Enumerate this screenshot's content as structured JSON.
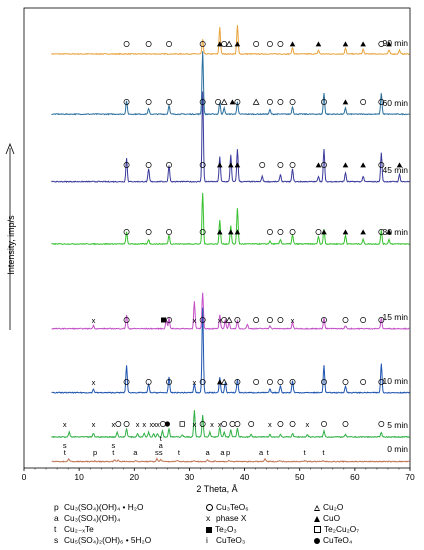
{
  "chart_data": {
    "type": "line",
    "xlabel": "2 Theta, Å",
    "ylabel": "Intensity, imp/s",
    "xlim": [
      0,
      70
    ],
    "xticks": [
      0,
      10,
      20,
      30,
      40,
      50,
      60,
      70
    ],
    "grid": false,
    "series": [
      {
        "name": "90 min",
        "color": "#e8a33b",
        "baseline": 0.68,
        "peaks": [
          [
            32.4,
            0.45
          ],
          [
            35.5,
            0.85
          ],
          [
            38.7,
            0.9
          ],
          [
            48.7,
            0.2
          ],
          [
            53.4,
            0.12
          ],
          [
            58.3,
            0.18
          ],
          [
            61.5,
            0.15
          ],
          [
            66.2,
            0.12
          ],
          [
            68.1,
            0.12
          ]
        ]
      },
      {
        "name": "60 min",
        "color": "#2a6f9e",
        "baseline": 0.62,
        "peaks": [
          [
            18.6,
            0.45
          ],
          [
            22.6,
            0.18
          ],
          [
            26.3,
            0.3
          ],
          [
            32.4,
            2.1
          ],
          [
            35.5,
            0.4
          ],
          [
            36.3,
            0.2
          ],
          [
            38.7,
            0.4
          ],
          [
            44.6,
            0.15
          ],
          [
            48.7,
            0.25
          ],
          [
            54.4,
            0.7
          ],
          [
            58.3,
            0.2
          ],
          [
            64.8,
            0.7
          ]
        ]
      },
      {
        "name": "45 min",
        "color": "#3a3a9c",
        "baseline": 0.45,
        "peaks": [
          [
            18.6,
            0.65
          ],
          [
            22.6,
            0.35
          ],
          [
            26.3,
            0.45
          ],
          [
            32.4,
            2.5
          ],
          [
            35.5,
            0.7
          ],
          [
            37.5,
            0.75
          ],
          [
            38.7,
            0.9
          ],
          [
            43.2,
            0.15
          ],
          [
            46.5,
            0.2
          ],
          [
            48.7,
            0.35
          ],
          [
            53.4,
            0.15
          ],
          [
            54.4,
            0.9
          ],
          [
            58.3,
            0.25
          ],
          [
            61.5,
            0.15
          ],
          [
            64.8,
            0.8
          ],
          [
            68.1,
            0.2
          ]
        ]
      },
      {
        "name": "30 min",
        "color": "#35c12e",
        "baseline": 0.35,
        "peaks": [
          [
            18.6,
            0.4
          ],
          [
            22.6,
            0.15
          ],
          [
            26.3,
            0.3
          ],
          [
            32.4,
            1.7
          ],
          [
            35.5,
            0.8
          ],
          [
            37.5,
            0.6
          ],
          [
            38.7,
            1.2
          ],
          [
            44.6,
            0.1
          ],
          [
            46.5,
            0.15
          ],
          [
            48.7,
            0.3
          ],
          [
            53.4,
            0.25
          ],
          [
            54.4,
            0.5
          ],
          [
            58.3,
            0.3
          ],
          [
            61.5,
            0.15
          ],
          [
            64.8,
            0.45
          ],
          [
            66.2,
            0.15
          ]
        ]
      },
      {
        "name": "15 min",
        "color": "#c450c8",
        "baseline": 0.45,
        "peaks": [
          [
            12.6,
            0.1
          ],
          [
            18.6,
            0.45
          ],
          [
            25.8,
            0.3
          ],
          [
            26.3,
            0.35
          ],
          [
            30.9,
            0.9
          ],
          [
            32.4,
            1.2
          ],
          [
            35.5,
            0.45
          ],
          [
            36.5,
            0.3
          ],
          [
            37.2,
            0.2
          ],
          [
            38.7,
            0.25
          ],
          [
            40.5,
            0.15
          ],
          [
            44.6,
            0.1
          ],
          [
            48.7,
            0.2
          ],
          [
            54.4,
            0.35
          ],
          [
            58.3,
            0.1
          ],
          [
            64.8,
            0.35
          ]
        ]
      },
      {
        "name": "10 min",
        "color": "#1f55b0",
        "baseline": 0.45,
        "peaks": [
          [
            12.6,
            0.1
          ],
          [
            18.6,
            0.8
          ],
          [
            22.6,
            0.25
          ],
          [
            26.3,
            0.45
          ],
          [
            30.9,
            0.25
          ],
          [
            32.4,
            2.5
          ],
          [
            35.5,
            0.45
          ],
          [
            36.5,
            0.3
          ],
          [
            38.7,
            0.4
          ],
          [
            44.6,
            0.1
          ],
          [
            46.5,
            0.2
          ],
          [
            48.7,
            0.35
          ],
          [
            54.4,
            0.8
          ],
          [
            58.3,
            0.2
          ],
          [
            64.8,
            0.85
          ]
        ]
      },
      {
        "name": "5 min",
        "color": "#2faf44",
        "baseline": 0.35,
        "peaks": [
          [
            8.2,
            0.2
          ],
          [
            12.6,
            0.15
          ],
          [
            16.9,
            0.2
          ],
          [
            18.6,
            0.35
          ],
          [
            20.6,
            0.15
          ],
          [
            21.8,
            0.15
          ],
          [
            22.6,
            0.2
          ],
          [
            23.5,
            0.15
          ],
          [
            24.2,
            0.15
          ],
          [
            25.1,
            0.25
          ],
          [
            26.3,
            0.35
          ],
          [
            28.7,
            0.1
          ],
          [
            30.9,
            1.1
          ],
          [
            32.4,
            0.9
          ],
          [
            33.7,
            0.2
          ],
          [
            35.5,
            0.4
          ],
          [
            36.3,
            0.2
          ],
          [
            37.5,
            0.3
          ],
          [
            38.7,
            0.35
          ],
          [
            41.2,
            0.1
          ],
          [
            44.6,
            0.1
          ],
          [
            46.5,
            0.1
          ],
          [
            48.7,
            0.15
          ],
          [
            51.4,
            0.1
          ],
          [
            54.4,
            0.25
          ],
          [
            58.3,
            0.1
          ],
          [
            64.8,
            0.2
          ]
        ]
      },
      {
        "name": "0 min",
        "color": "#c07454",
        "baseline": 0.15,
        "peaks": [
          [
            8.1,
            0.2
          ],
          [
            12.9,
            0.05
          ],
          [
            16.4,
            0.15
          ],
          [
            17.1,
            0.1
          ],
          [
            20.2,
            0.08
          ],
          [
            24.1,
            0.2
          ],
          [
            24.8,
            0.15
          ],
          [
            27.8,
            0.1
          ],
          [
            30.9,
            0.08
          ],
          [
            33.3,
            0.1
          ],
          [
            34.7,
            0.07
          ],
          [
            37.2,
            0.08
          ],
          [
            43.7,
            0.2
          ],
          [
            46.3,
            0.08
          ],
          [
            50.9,
            0.07
          ],
          [
            54.3,
            0.05
          ]
        ]
      }
    ],
    "markers": [
      {
        "series": "90 min",
        "items": [
          [
            "o",
            18.6
          ],
          [
            "o",
            22.6
          ],
          [
            "o",
            26.3
          ],
          [
            "o",
            32.4
          ],
          [
            "▲",
            35.5
          ],
          [
            "o",
            36.3
          ],
          [
            "△",
            37.2
          ],
          [
            "▲",
            38.7
          ],
          [
            "o",
            42.1
          ],
          [
            "o",
            44.6
          ],
          [
            "o",
            46.5
          ],
          [
            "▲",
            48.7
          ],
          [
            "▲",
            53.4
          ],
          [
            "▲",
            58.3
          ],
          [
            "▲",
            61.5
          ],
          [
            "o",
            64.8
          ],
          [
            "▲",
            66.2
          ]
        ]
      },
      {
        "series": "60 min",
        "items": [
          [
            "o",
            18.6
          ],
          [
            "o",
            22.6
          ],
          [
            "o",
            26.3
          ],
          [
            "o",
            32.4
          ],
          [
            "o",
            35.2
          ],
          [
            "△",
            36.3
          ],
          [
            "▲",
            37.8
          ],
          [
            "o",
            38.7
          ],
          [
            "△",
            42.1
          ],
          [
            "o",
            44.6
          ],
          [
            "o",
            46.5
          ],
          [
            "o",
            48.7
          ],
          [
            "o",
            54.4
          ],
          [
            "▲",
            58.3
          ],
          [
            "o",
            61.5
          ],
          [
            "o",
            64.8
          ]
        ]
      },
      {
        "series": "45 min",
        "items": [
          [
            "o",
            18.6
          ],
          [
            "o",
            22.6
          ],
          [
            "o",
            26.3
          ],
          [
            "o",
            32.4
          ],
          [
            "▲",
            35.5
          ],
          [
            "▲",
            37.5
          ],
          [
            "▲",
            38.7
          ],
          [
            "o",
            43.2
          ],
          [
            "o",
            46.5
          ],
          [
            "o",
            48.7
          ],
          [
            "▲",
            53.4
          ],
          [
            "o",
            54.4
          ],
          [
            "▲",
            58.3
          ],
          [
            "▲",
            61.5
          ],
          [
            "o",
            64.8
          ],
          [
            "▲",
            68.1
          ]
        ]
      },
      {
        "series": "30 min",
        "items": [
          [
            "o",
            18.6
          ],
          [
            "o",
            22.6
          ],
          [
            "o",
            26.3
          ],
          [
            "o",
            32.4
          ],
          [
            "▲",
            35.5
          ],
          [
            "▲",
            37.5
          ],
          [
            "▲",
            38.7
          ],
          [
            "o",
            44.6
          ],
          [
            "o",
            46.5
          ],
          [
            "o",
            48.7
          ],
          [
            "o",
            53.4
          ],
          [
            "▲",
            54.4
          ],
          [
            "▲",
            58.3
          ],
          [
            "▲",
            61.5
          ],
          [
            "o",
            64.8
          ],
          [
            "▲",
            66.2
          ]
        ]
      },
      {
        "series": "15 min",
        "items": [
          [
            "x",
            12.6
          ],
          [
            "o",
            18.6
          ],
          [
            "■",
            25.3
          ],
          [
            "o",
            26.3
          ],
          [
            "x",
            30.9
          ],
          [
            "o",
            32.4
          ],
          [
            "x",
            35.5
          ],
          [
            "o",
            36.3
          ],
          [
            "△",
            37.2
          ],
          [
            "o",
            38.7
          ],
          [
            "o",
            42.1
          ],
          [
            "o",
            44.6
          ],
          [
            "o",
            46.5
          ],
          [
            "x",
            48.7
          ],
          [
            "o",
            54.4
          ],
          [
            "o",
            58.3
          ],
          [
            "o",
            61.5
          ],
          [
            "o",
            64.8
          ]
        ]
      },
      {
        "series": "10 min",
        "items": [
          [
            "x",
            12.6
          ],
          [
            "o",
            18.6
          ],
          [
            "o",
            22.6
          ],
          [
            "o",
            26.3
          ],
          [
            "x",
            30.9
          ],
          [
            "o",
            32.4
          ],
          [
            "▲",
            35.5
          ],
          [
            "△",
            36.3
          ],
          [
            "o",
            38.7
          ],
          [
            "o",
            42.1
          ],
          [
            "o",
            44.6
          ],
          [
            "o",
            46.5
          ],
          [
            "o",
            48.7
          ],
          [
            "o",
            54.4
          ],
          [
            "o",
            58.3
          ],
          [
            "o",
            61.5
          ],
          [
            "o",
            64.8
          ]
        ]
      },
      {
        "series": "5 min",
        "items": [
          [
            "x",
            7.4
          ],
          [
            "x",
            12.6
          ],
          [
            "x",
            16.2
          ],
          [
            "o",
            17.1
          ],
          [
            "o",
            18.6
          ],
          [
            "x",
            20.6
          ],
          [
            "x",
            21.8
          ],
          [
            "x",
            23.1
          ],
          [
            "x",
            23.7
          ],
          [
            "x",
            24.3
          ],
          [
            "o",
            25.2
          ],
          [
            "●",
            26.0
          ],
          [
            "□",
            28.7
          ],
          [
            "x",
            30.9
          ],
          [
            "o",
            32.4
          ],
          [
            "x",
            34.1
          ],
          [
            "x",
            35.5
          ],
          [
            "o",
            36.3
          ],
          [
            "o",
            37.8
          ],
          [
            "o",
            38.7
          ],
          [
            "o",
            41.2
          ],
          [
            "x",
            44.6
          ],
          [
            "o",
            46.5
          ],
          [
            "o",
            48.7
          ],
          [
            "x",
            51.4
          ],
          [
            "o",
            54.4
          ],
          [
            "o",
            58.3
          ],
          [
            "o",
            64.8
          ]
        ]
      },
      {
        "series": "0 min",
        "items": [
          [
            "t",
            7.4
          ],
          [
            "s",
            7.4
          ],
          [
            "p",
            12.9
          ],
          [
            "t",
            16.2
          ],
          [
            "s",
            16.2
          ],
          [
            "a",
            20.2
          ],
          [
            "s",
            24.1
          ],
          [
            "s",
            24.8
          ],
          [
            "a",
            24.8
          ],
          [
            "t",
            24.8
          ],
          [
            "t",
            28.1
          ],
          [
            "a",
            33.3
          ],
          [
            "a",
            36.0
          ],
          [
            "p",
            37.0
          ],
          [
            "a",
            43.0
          ],
          [
            "t",
            44.2
          ],
          [
            "t",
            50.9
          ],
          [
            "t",
            54.3
          ]
        ]
      }
    ],
    "extra_markers": [
      {
        "series": "5 min",
        "items": [
          [
            "■",
            25.1
          ],
          [
            "a",
            24.7
          ],
          [
            "t",
            24.7
          ],
          [
            "s",
            24.7
          ]
        ]
      }
    ],
    "legend_left": [
      {
        "symbol": "p",
        "text": "Cu₃(SO₄)(OH)₄ • H₂O"
      },
      {
        "symbol": "a",
        "text": "Cu₃(SO₄)(OH)₄"
      },
      {
        "symbol": "t",
        "text": "Cu₂₋ₓTe"
      },
      {
        "symbol": "s",
        "text": "Cu₅(SO₄)₂(OH)₆ • 5H₂O"
      }
    ],
    "legend_mid": [
      {
        "symbol": "circle-open",
        "text": "Cu₃TeO₆"
      },
      {
        "symbol": "x",
        "text": "phase X"
      },
      {
        "symbol": "square-fill",
        "text": "Te₂O₃"
      },
      {
        "symbol": "i",
        "text": "CuTeO₃"
      }
    ],
    "legend_right": [
      {
        "symbol": "tri-open",
        "text": "Cu₂O"
      },
      {
        "symbol": "tri-fill",
        "text": "CuO"
      },
      {
        "symbol": "square-open",
        "text": "Te₂Cu₂O₇"
      },
      {
        "symbol": "dot-fill",
        "text": "CuTeO₄"
      }
    ]
  }
}
